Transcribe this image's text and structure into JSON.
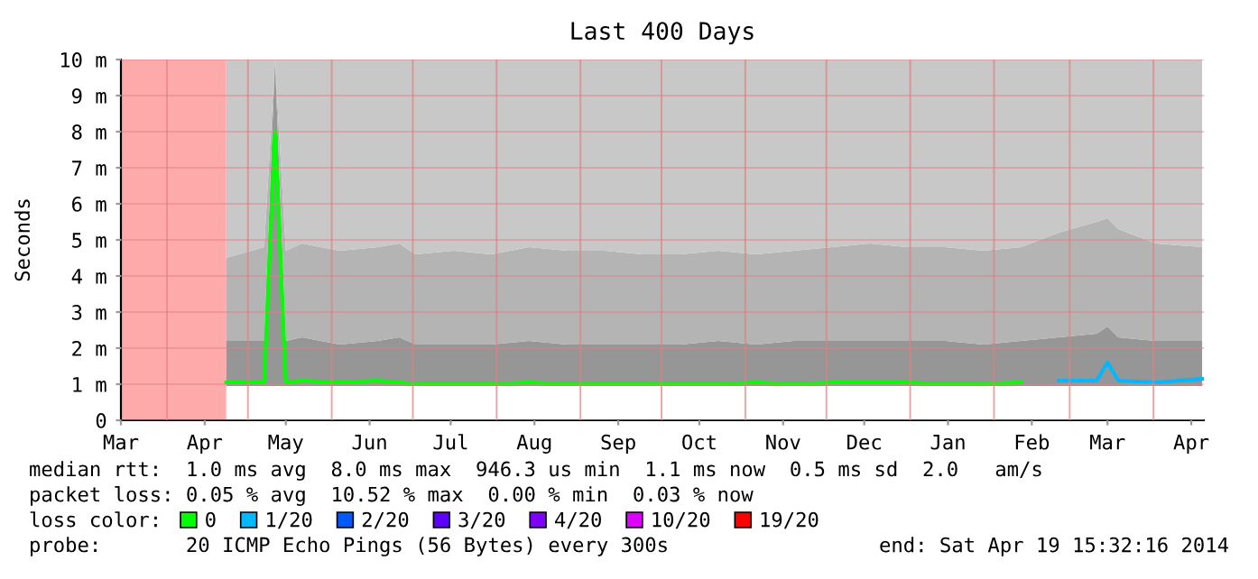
{
  "chart_data": {
    "type": "line",
    "title": "Last 400 Days",
    "ylabel": "Seconds",
    "legend_title": "loss color:",
    "stacked": true,
    "xlim": [
      "2013-03-15",
      "2014-04-19T15:32"
    ],
    "xticks": [
      {
        "value": "2013-03-15",
        "label": "Mar"
      },
      {
        "value": "2013-04-15",
        "label": "Apr"
      },
      {
        "value": "2013-05-15",
        "label": "May"
      },
      {
        "value": "2013-06-15",
        "label": "Jun"
      },
      {
        "value": "2013-07-15",
        "label": "Jul"
      },
      {
        "value": "2013-08-15",
        "label": "Aug"
      },
      {
        "value": "2013-09-15",
        "label": "Sep"
      },
      {
        "value": "2013-10-15",
        "label": "Oct"
      },
      {
        "value": "2013-11-15",
        "label": "Nov"
      },
      {
        "value": "2013-12-15",
        "label": "Dec"
      },
      {
        "value": "2014-01-15",
        "label": "Jan"
      },
      {
        "value": "2014-02-15",
        "label": "Feb"
      },
      {
        "value": "2014-03-15",
        "label": "Mar"
      },
      {
        "value": "2014-04-15",
        "label": "Apr"
      }
    ],
    "ylim": [
      0,
      10
    ],
    "yticks": [
      0,
      {
        "value": 1,
        "label": "1 m"
      },
      {
        "value": 2,
        "label": "2 m"
      },
      {
        "value": 3,
        "label": "3 m"
      },
      {
        "value": 4,
        "label": "4 m"
      },
      {
        "value": 5,
        "label": "5 m"
      },
      {
        "value": 6,
        "label": "6 m"
      },
      {
        "value": 7,
        "label": "7 m"
      },
      {
        "value": 8,
        "label": "8 m"
      },
      {
        "value": 9,
        "label": "9 m"
      },
      {
        "value": 10,
        "label": "10 m"
      }
    ],
    "grid": "y",
    "legend": "bottom",
    "line_style": "solid",
    "marker": "none",
    "x": [
      "2013-04-23",
      "2013-05-07",
      "2013-05-11",
      "2013-05-15",
      "2013-05-21",
      "2013-06-04",
      "2013-06-18",
      "2013-06-26",
      "2013-07-02",
      "2013-07-16",
      "2013-07-30",
      "2013-08-13",
      "2013-08-27",
      "2013-09-10",
      "2013-09-24",
      "2013-10-08",
      "2013-10-22",
      "2013-11-05",
      "2013-11-19",
      "2013-12-03",
      "2013-12-17",
      "2013-12-31",
      "2014-01-14",
      "2014-01-28",
      "2014-02-11",
      "2014-02-25",
      "2014-03-11",
      "2014-03-15",
      "2014-03-19",
      "2014-04-02",
      "2014-04-19"
    ],
    "series": [
      {
        "type": "area",
        "color": "#ffffff",
        "values": [
          0.95,
          0.95,
          0.95,
          0.95,
          0.95,
          0.95,
          0.95,
          0.95,
          0.95,
          0.95,
          0.95,
          0.95,
          0.95,
          0.95,
          0.95,
          0.95,
          0.95,
          0.95,
          0.95,
          0.95,
          0.95,
          0.95,
          0.95,
          0.95,
          0.95,
          0.95,
          0.95,
          0.95,
          0.95,
          0.95,
          0.95
        ]
      },
      {
        "type": "area",
        "color": "#969696",
        "values": [
          1.25,
          1.25,
          9.05,
          1.25,
          1.35,
          1.15,
          1.25,
          1.35,
          1.15,
          1.15,
          1.15,
          1.25,
          1.15,
          1.15,
          1.15,
          1.15,
          1.25,
          1.15,
          1.25,
          1.25,
          1.25,
          1.25,
          1.25,
          1.15,
          1.25,
          1.35,
          1.45,
          1.65,
          1.35,
          1.25,
          1.25
        ]
      },
      {
        "type": "area",
        "color": "#b4b4b4",
        "values": [
          2.3,
          2.6,
          0,
          2.5,
          2.6,
          2.6,
          2.6,
          2.6,
          2.5,
          2.6,
          2.5,
          2.6,
          2.6,
          2.6,
          2.5,
          2.5,
          2.5,
          2.5,
          2.5,
          2.6,
          2.7,
          2.6,
          2.6,
          2.6,
          2.6,
          2.9,
          3.1,
          3.0,
          3.0,
          2.7,
          2.6
        ]
      },
      {
        "type": "area",
        "color": "#c8c8c8",
        "values": [
          5.5,
          5.2,
          0,
          5.3,
          5.1,
          5.3,
          5.2,
          5.1,
          5.4,
          5.3,
          5.4,
          5.2,
          5.3,
          5.3,
          5.4,
          5.4,
          5.3,
          5.4,
          5.3,
          5.2,
          5.1,
          5.2,
          5.2,
          5.3,
          5.2,
          4.8,
          4.5,
          4.4,
          4.7,
          5.1,
          5.2
        ]
      },
      {
        "name": "0",
        "color": "#00ff00",
        "values": [
          1.05,
          1.05,
          8.0,
          1.05,
          1.1,
          1.05,
          1.1,
          1.05,
          1.0,
          1.0,
          1.0,
          1.05,
          1.0,
          1.0,
          1.0,
          1.0,
          1.0,
          1.05,
          1.0,
          1.05,
          1.05,
          1.05,
          1.0,
          1.0,
          1.05,
          null,
          null,
          null,
          null,
          null,
          null
        ]
      },
      {
        "name": "1/20",
        "color": "#00b8ff",
        "values": [
          null,
          null,
          null,
          null,
          null,
          null,
          null,
          null,
          null,
          null,
          null,
          null,
          null,
          null,
          null,
          null,
          null,
          null,
          null,
          null,
          null,
          null,
          null,
          null,
          null,
          1.1,
          1.1,
          1.6,
          1.1,
          1.05,
          1.15
        ]
      },
      {
        "name": "2/20",
        "color": "#0059ff",
        "values": [
          null,
          null,
          null,
          null,
          null,
          null,
          null,
          null,
          null,
          null,
          null,
          null,
          null,
          null,
          null,
          null,
          null,
          null,
          null,
          null,
          null,
          null,
          null,
          null,
          null,
          null,
          null,
          null,
          null,
          null,
          null
        ]
      },
      {
        "name": "3/20",
        "color": "#5e00ff",
        "values": [
          null,
          null,
          null,
          null,
          null,
          null,
          null,
          null,
          null,
          null,
          null,
          null,
          null,
          null,
          null,
          null,
          null,
          null,
          null,
          null,
          null,
          null,
          null,
          null,
          null,
          null,
          null,
          null,
          null,
          null,
          null
        ]
      },
      {
        "name": "4/20",
        "color": "#7e00ff",
        "values": [
          null,
          null,
          null,
          null,
          null,
          null,
          null,
          null,
          null,
          null,
          null,
          null,
          null,
          null,
          null,
          null,
          null,
          null,
          null,
          null,
          null,
          null,
          null,
          null,
          null,
          null,
          null,
          null,
          null,
          null,
          null
        ]
      },
      {
        "name": "10/20",
        "color": "#dd00ff",
        "values": [
          null,
          null,
          null,
          null,
          null,
          null,
          null,
          null,
          null,
          null,
          null,
          null,
          null,
          null,
          null,
          null,
          null,
          null,
          null,
          null,
          null,
          null,
          null,
          null,
          null,
          null,
          null,
          null,
          null,
          null,
          null
        ]
      },
      {
        "name": "19/20",
        "color": "#ff0000",
        "values": [
          null,
          null,
          null,
          null,
          null,
          null,
          null,
          null,
          null,
          null,
          null,
          null,
          null,
          null,
          null,
          null,
          null,
          null,
          null,
          null,
          null,
          null,
          null,
          null,
          null,
          null,
          null,
          null,
          null,
          null,
          null
        ]
      }
    ],
    "bands": [
      {
        "axis": "x",
        "from": "2013-03-15",
        "to": "2013-04-23",
        "color": "#ffaaaa"
      }
    ],
    "ref_lines": [
      {
        "axis": "x",
        "value": "2013-04-01",
        "color": "#e08080"
      },
      {
        "axis": "x",
        "value": "2013-05-01",
        "color": "#e08080"
      },
      {
        "axis": "x",
        "value": "2013-06-01",
        "color": "#e08080"
      },
      {
        "axis": "x",
        "value": "2013-07-01",
        "color": "#e08080"
      },
      {
        "axis": "x",
        "value": "2013-08-01",
        "color": "#e08080"
      },
      {
        "axis": "x",
        "value": "2013-09-01",
        "color": "#e08080"
      },
      {
        "axis": "x",
        "value": "2013-10-01",
        "color": "#e08080"
      },
      {
        "axis": "x",
        "value": "2013-11-01",
        "color": "#e08080"
      },
      {
        "axis": "x",
        "value": "2013-12-01",
        "color": "#e08080"
      },
      {
        "axis": "x",
        "value": "2014-01-01",
        "color": "#e08080"
      },
      {
        "axis": "x",
        "value": "2014-02-01",
        "color": "#e08080"
      },
      {
        "axis": "x",
        "value": "2014-03-01",
        "color": "#e08080"
      },
      {
        "axis": "x",
        "value": "2014-04-01",
        "color": "#e08080"
      }
    ],
    "annotations": [
      "median rtt:  1.0 ms avg  8.0 ms max  946.3 us min  1.1 ms now  0.5 ms sd  2.0   am/s",
      "packet loss: 0.05 % avg  10.52 % max  0.00 % min  0.03 % now",
      "probe:       20 ICMP Echo Pings (56 Bytes) every 300s",
      "end: Sat Apr 19 15:32:16 2014"
    ]
  }
}
